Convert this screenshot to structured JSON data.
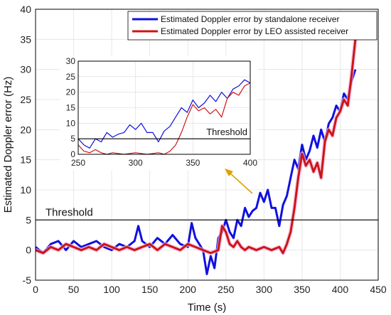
{
  "chart_data": {
    "type": "line",
    "title": "",
    "xlabel": "Time (s)",
    "ylabel": "Estimated Doppler error (Hz)",
    "xlim": [
      0,
      450
    ],
    "ylim": [
      -5,
      40
    ],
    "xticks": [
      "0",
      "50",
      "100",
      "150",
      "200",
      "250",
      "300",
      "350",
      "400",
      "450"
    ],
    "yticks": [
      "-5",
      "0",
      "5",
      "10",
      "15",
      "20",
      "25",
      "30",
      "35",
      "40"
    ],
    "grid": true,
    "legend_position": "top-right",
    "threshold": {
      "value": 5,
      "label": "Threshold"
    },
    "series": [
      {
        "name": "Estimated Doppler error by standalone receiver",
        "color": "#1010e0",
        "x": [
          0,
          10,
          20,
          30,
          40,
          50,
          60,
          70,
          80,
          90,
          100,
          110,
          120,
          130,
          135,
          140,
          150,
          160,
          170,
          180,
          190,
          200,
          205,
          210,
          215,
          220,
          225,
          230,
          235,
          240,
          245,
          250,
          255,
          260,
          265,
          270,
          275,
          280,
          285,
          290,
          295,
          300,
          305,
          310,
          315,
          320,
          325,
          330,
          335,
          340,
          345,
          350,
          355,
          360,
          365,
          370,
          375,
          380,
          385,
          390,
          395,
          400,
          405,
          410,
          415,
          420
        ],
        "y": [
          0.5,
          -0.5,
          1,
          1.5,
          0,
          1.5,
          0.5,
          1,
          1.5,
          0.5,
          0,
          1,
          0.5,
          1.5,
          4,
          1.5,
          0.5,
          2,
          1,
          2.5,
          1,
          0.5,
          4.5,
          2,
          1,
          0,
          -4,
          -1,
          -3,
          2,
          3,
          5,
          3,
          2,
          5,
          4,
          7,
          5.5,
          6.5,
          7,
          9.5,
          8,
          10,
          7,
          7,
          4,
          7.5,
          9,
          12,
          15,
          13.5,
          17.5,
          15,
          16.5,
          19,
          17,
          20,
          18,
          21,
          22,
          24,
          23,
          26,
          25,
          28,
          30
        ]
      },
      {
        "name": "Estimated Doppler error by LEO assisted receiver",
        "color": "#cc1515",
        "x": [
          0,
          10,
          20,
          30,
          40,
          50,
          60,
          70,
          80,
          90,
          100,
          110,
          120,
          130,
          140,
          150,
          160,
          170,
          180,
          190,
          200,
          210,
          220,
          230,
          240,
          245,
          250,
          255,
          260,
          265,
          270,
          275,
          280,
          290,
          300,
          310,
          320,
          325,
          330,
          335,
          340,
          345,
          350,
          355,
          360,
          365,
          370,
          375,
          380,
          385,
          390,
          395,
          400,
          405,
          410,
          415,
          420
        ],
        "y": [
          0,
          -0.5,
          0.5,
          0,
          1,
          0.5,
          0,
          0.5,
          0,
          1,
          0.5,
          0,
          0.5,
          0,
          0.5,
          1,
          0,
          1,
          0.5,
          0,
          1,
          0.5,
          0,
          -0.5,
          0,
          4,
          3,
          1,
          0.5,
          1.5,
          0.5,
          0,
          0.5,
          0,
          0.5,
          0,
          0.5,
          -0.5,
          1,
          3,
          7,
          12,
          16,
          14,
          15,
          13,
          14.5,
          12,
          18,
          20,
          19,
          22,
          23,
          25,
          24,
          29,
          35
        ]
      }
    ],
    "inset": {
      "xlim": [
        250,
        400
      ],
      "ylim": [
        0,
        30
      ],
      "xticks": [
        "250",
        "300",
        "350",
        "400"
      ],
      "yticks": [
        "0",
        "5",
        "10",
        "15",
        "20",
        "25",
        "30"
      ],
      "threshold_label": "Threshold"
    }
  }
}
